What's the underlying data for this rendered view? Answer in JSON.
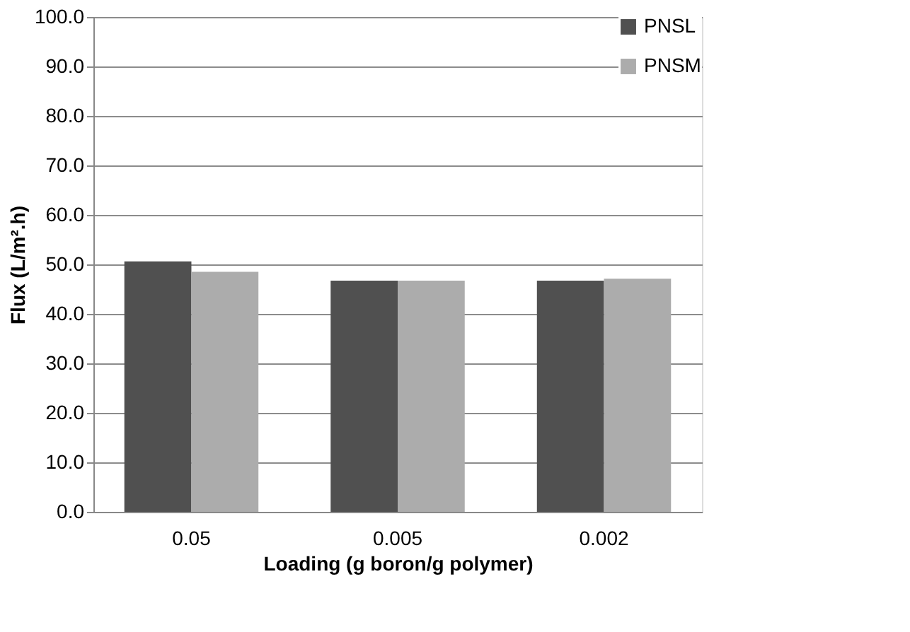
{
  "chart_data": {
    "type": "bar",
    "xlabel": "Loading (g boron/g polymer)",
    "ylabel": "Flux (L/m².h)",
    "categories": [
      "0.05",
      "0.005",
      "0.002"
    ],
    "series": [
      {
        "name": "PNSL",
        "color": "#505050",
        "values": [
          50.6,
          46.7,
          46.7
        ]
      },
      {
        "name": "PNSM",
        "color": "#acacac",
        "values": [
          48.5,
          46.7,
          47.1
        ]
      }
    ],
    "ylim": [
      0,
      100
    ],
    "yticks": [
      {
        "value": 0,
        "label": "0.0"
      },
      {
        "value": 10,
        "label": "10.0"
      },
      {
        "value": 20,
        "label": "20.0"
      },
      {
        "value": 30,
        "label": "30.0"
      },
      {
        "value": 40,
        "label": "40.0"
      },
      {
        "value": 50,
        "label": "50.0"
      },
      {
        "value": 60,
        "label": "60.0"
      },
      {
        "value": 70,
        "label": "70.0"
      },
      {
        "value": 80,
        "label": "80.0"
      },
      {
        "value": 90,
        "label": "90.0"
      },
      {
        "value": 100,
        "label": "100.0"
      }
    ],
    "grid": "y",
    "legend": "top right"
  }
}
